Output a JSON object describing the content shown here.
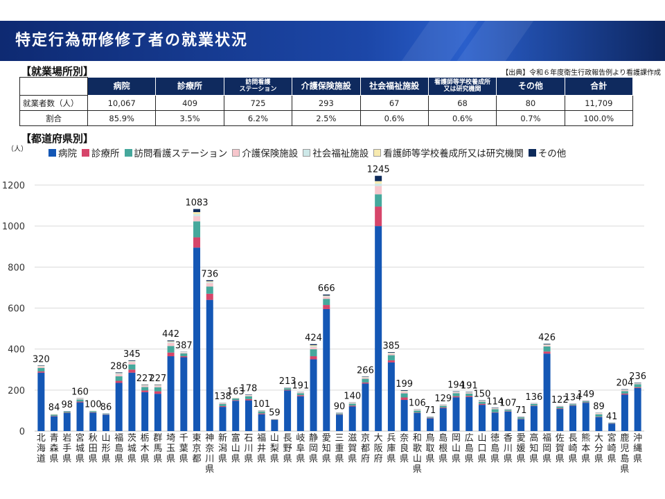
{
  "title": "特定行為研修修了者の就業状況",
  "section_workplace": "【就業場所別】",
  "source": "【出典】令和６年度衛生行政報告例より看護課作成",
  "table": {
    "headers": [
      "病院",
      "診療所",
      "訪問看護\nステーション",
      "介護保険施設",
      "社会福祉施設",
      "看護師等学校養成所\n又は研究機関",
      "その他",
      "合計"
    ],
    "rows": [
      {
        "label": "就業者数（人）",
        "cells": [
          "10,067",
          "409",
          "725",
          "293",
          "67",
          "68",
          "80",
          "11,709"
        ]
      },
      {
        "label": "割合",
        "cells": [
          "85.9%",
          "3.5%",
          "6.2%",
          "2.5%",
          "0.6%",
          "0.6%",
          "0.7%",
          "100.0%"
        ]
      }
    ]
  },
  "section_prefecture": "【都道府県別】",
  "chart_data": {
    "type": "bar",
    "stacked": true,
    "ylabel": "（人）",
    "ylim": [
      0,
      1200
    ],
    "yticks": [
      0,
      200,
      400,
      600,
      800,
      1000,
      1200
    ],
    "grid": true,
    "legend_position": "top",
    "categories": [
      "北海道",
      "青森県",
      "岩手県",
      "宮城県",
      "秋田県",
      "山形県",
      "福島県",
      "茨城県",
      "栃木県",
      "群馬県",
      "埼玉県",
      "千葉県",
      "東京都",
      "神奈川県",
      "新潟県",
      "富山県",
      "石川県",
      "福井県",
      "山梨県",
      "長野県",
      "岐阜県",
      "静岡県",
      "愛知県",
      "三重県",
      "滋賀県",
      "京都府",
      "大阪府",
      "兵庫県",
      "奈良県",
      "和歌山県",
      "鳥取県",
      "島根県",
      "岡山県",
      "広島県",
      "山口県",
      "徳島県",
      "香川県",
      "愛媛県",
      "高知県",
      "福岡県",
      "佐賀県",
      "長崎県",
      "熊本県",
      "大分県",
      "宮崎県",
      "鹿児島県",
      "沖縄県"
    ],
    "totals": [
      320,
      84,
      98,
      160,
      100,
      86,
      286,
      345,
      227,
      227,
      442,
      387,
      1083,
      736,
      138,
      163,
      178,
      101,
      59,
      213,
      191,
      424,
      666,
      90,
      140,
      266,
      1245,
      385,
      199,
      106,
      71,
      129,
      194,
      191,
      150,
      114,
      107,
      71,
      136,
      426,
      122,
      134,
      149,
      89,
      41,
      204,
      236
    ],
    "series": [
      {
        "name": "病院",
        "color": "#1457b5",
        "values": [
          285,
          72,
          88,
          140,
          90,
          80,
          235,
          285,
          190,
          182,
          365,
          360,
          895,
          640,
          118,
          148,
          150,
          82,
          55,
          198,
          170,
          350,
          595,
          80,
          120,
          232,
          1000,
          335,
          152,
          88,
          62,
          112,
          165,
          166,
          128,
          90,
          95,
          58,
          122,
          378,
          108,
          124,
          138,
          68,
          36,
          178,
          210
        ]
      },
      {
        "name": "診療所",
        "color": "#d6456a",
        "values": [
          6,
          2,
          2,
          4,
          2,
          1,
          10,
          15,
          8,
          12,
          18,
          5,
          50,
          30,
          4,
          3,
          6,
          4,
          1,
          3,
          5,
          15,
          20,
          2,
          4,
          5,
          95,
          10,
          12,
          2,
          2,
          3,
          5,
          5,
          5,
          2,
          2,
          2,
          2,
          10,
          3,
          2,
          2,
          2,
          1,
          5,
          4
        ]
      },
      {
        "name": "訪問看護ステーション",
        "color": "#45a89c",
        "values": [
          17,
          6,
          5,
          10,
          5,
          2,
          22,
          25,
          17,
          20,
          32,
          14,
          78,
          35,
          10,
          8,
          14,
          10,
          2,
          8,
          10,
          34,
          30,
          4,
          10,
          18,
          60,
          25,
          20,
          10,
          3,
          8,
          15,
          12,
          10,
          15,
          6,
          7,
          8,
          25,
          7,
          5,
          5,
          12,
          2,
          12,
          15
        ]
      },
      {
        "name": "介護保険施設",
        "color": "#f7c6cc",
        "values": [
          6,
          2,
          1,
          3,
          1,
          1,
          10,
          12,
          6,
          7,
          15,
          4,
          25,
          17,
          3,
          2,
          4,
          2,
          1,
          2,
          3,
          10,
          10,
          2,
          3,
          5,
          40,
          7,
          8,
          3,
          2,
          3,
          4,
          4,
          3,
          3,
          2,
          2,
          2,
          6,
          2,
          2,
          2,
          4,
          1,
          5,
          3
        ]
      },
      {
        "name": "社会福祉施設",
        "color": "#cde8e8",
        "values": [
          2,
          1,
          1,
          1,
          1,
          1,
          4,
          3,
          2,
          2,
          5,
          2,
          10,
          5,
          1,
          1,
          1,
          1,
          0,
          1,
          1,
          5,
          3,
          1,
          1,
          2,
          12,
          3,
          2,
          1,
          1,
          1,
          2,
          1,
          1,
          1,
          1,
          1,
          1,
          2,
          1,
          0,
          1,
          1,
          0,
          1,
          1
        ]
      },
      {
        "name": "看護師等学校養成所又は研究機関",
        "color": "#f7eab0",
        "values": [
          2,
          1,
          0,
          1,
          1,
          0,
          2,
          2,
          2,
          2,
          3,
          1,
          10,
          4,
          1,
          1,
          1,
          1,
          0,
          0,
          1,
          5,
          3,
          0,
          1,
          2,
          12,
          2,
          2,
          1,
          0,
          1,
          1,
          1,
          1,
          1,
          0,
          0,
          0,
          2,
          0,
          0,
          0,
          1,
          0,
          1,
          1
        ]
      },
      {
        "name": "その他",
        "color": "#0d2a5a",
        "values": [
          2,
          0,
          1,
          1,
          0,
          1,
          3,
          3,
          2,
          2,
          4,
          1,
          15,
          5,
          1,
          0,
          2,
          1,
          0,
          1,
          1,
          5,
          5,
          1,
          1,
          2,
          26,
          3,
          3,
          1,
          1,
          1,
          2,
          2,
          2,
          2,
          1,
          1,
          1,
          3,
          1,
          1,
          1,
          1,
          1,
          2,
          2
        ]
      }
    ]
  }
}
